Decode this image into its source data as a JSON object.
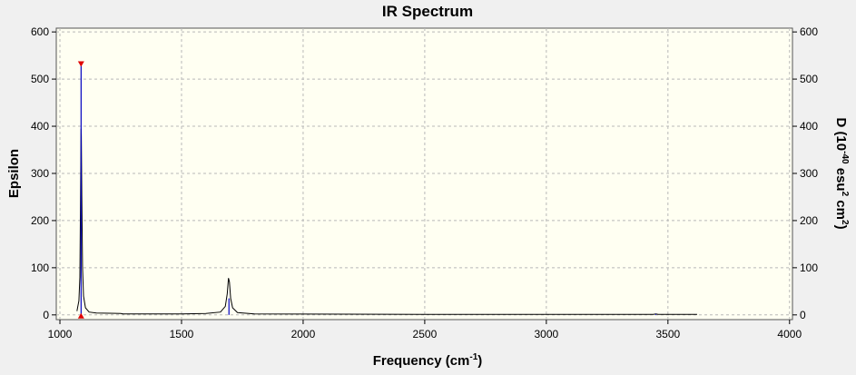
{
  "chart_data": {
    "type": "line",
    "title": "IR Spectrum",
    "ylabel": "Epsilon",
    "xlabel": [
      "Frequency (cm",
      "-1",
      ")"
    ],
    "y2label": [
      "D (10",
      "-40",
      " esu",
      "2",
      " cm",
      "2",
      ")"
    ],
    "xlim": [
      985,
      4012
    ],
    "ylim": [
      -10,
      608
    ],
    "y2lim": [
      -10,
      608
    ],
    "xticks": [
      1000,
      1500,
      2000,
      2500,
      3000,
      3500,
      4000
    ],
    "yticks": [
      0,
      100,
      200,
      300,
      400,
      500,
      600
    ],
    "y2ticks": [
      0,
      100,
      200,
      300,
      400,
      500,
      600
    ],
    "grid": true,
    "series": [
      {
        "name": "Epsilon",
        "color": "#000000",
        "x": [
          1070,
          1078,
          1082,
          1084,
          1086,
          1087,
          1088,
          1090,
          1093,
          1097,
          1105,
          1120,
          1150,
          1250,
          1260,
          1500,
          1600,
          1660,
          1680,
          1688,
          1693,
          1697,
          1702,
          1710,
          1730,
          1800,
          2500,
          3440,
          3450,
          3460,
          3620
        ],
        "values": [
          8,
          30,
          80,
          200,
          330,
          395,
          380,
          250,
          100,
          40,
          15,
          6,
          4,
          3,
          2,
          2,
          3,
          6,
          18,
          45,
          78,
          70,
          35,
          15,
          5,
          2,
          1,
          1,
          2,
          1,
          1
        ]
      },
      {
        "name": "D",
        "color": "#0000c0",
        "axis": "y2",
        "type": "stick",
        "x": [
          1087,
          1695,
          3450
        ],
        "values": [
          530,
          35,
          2
        ]
      }
    ]
  }
}
